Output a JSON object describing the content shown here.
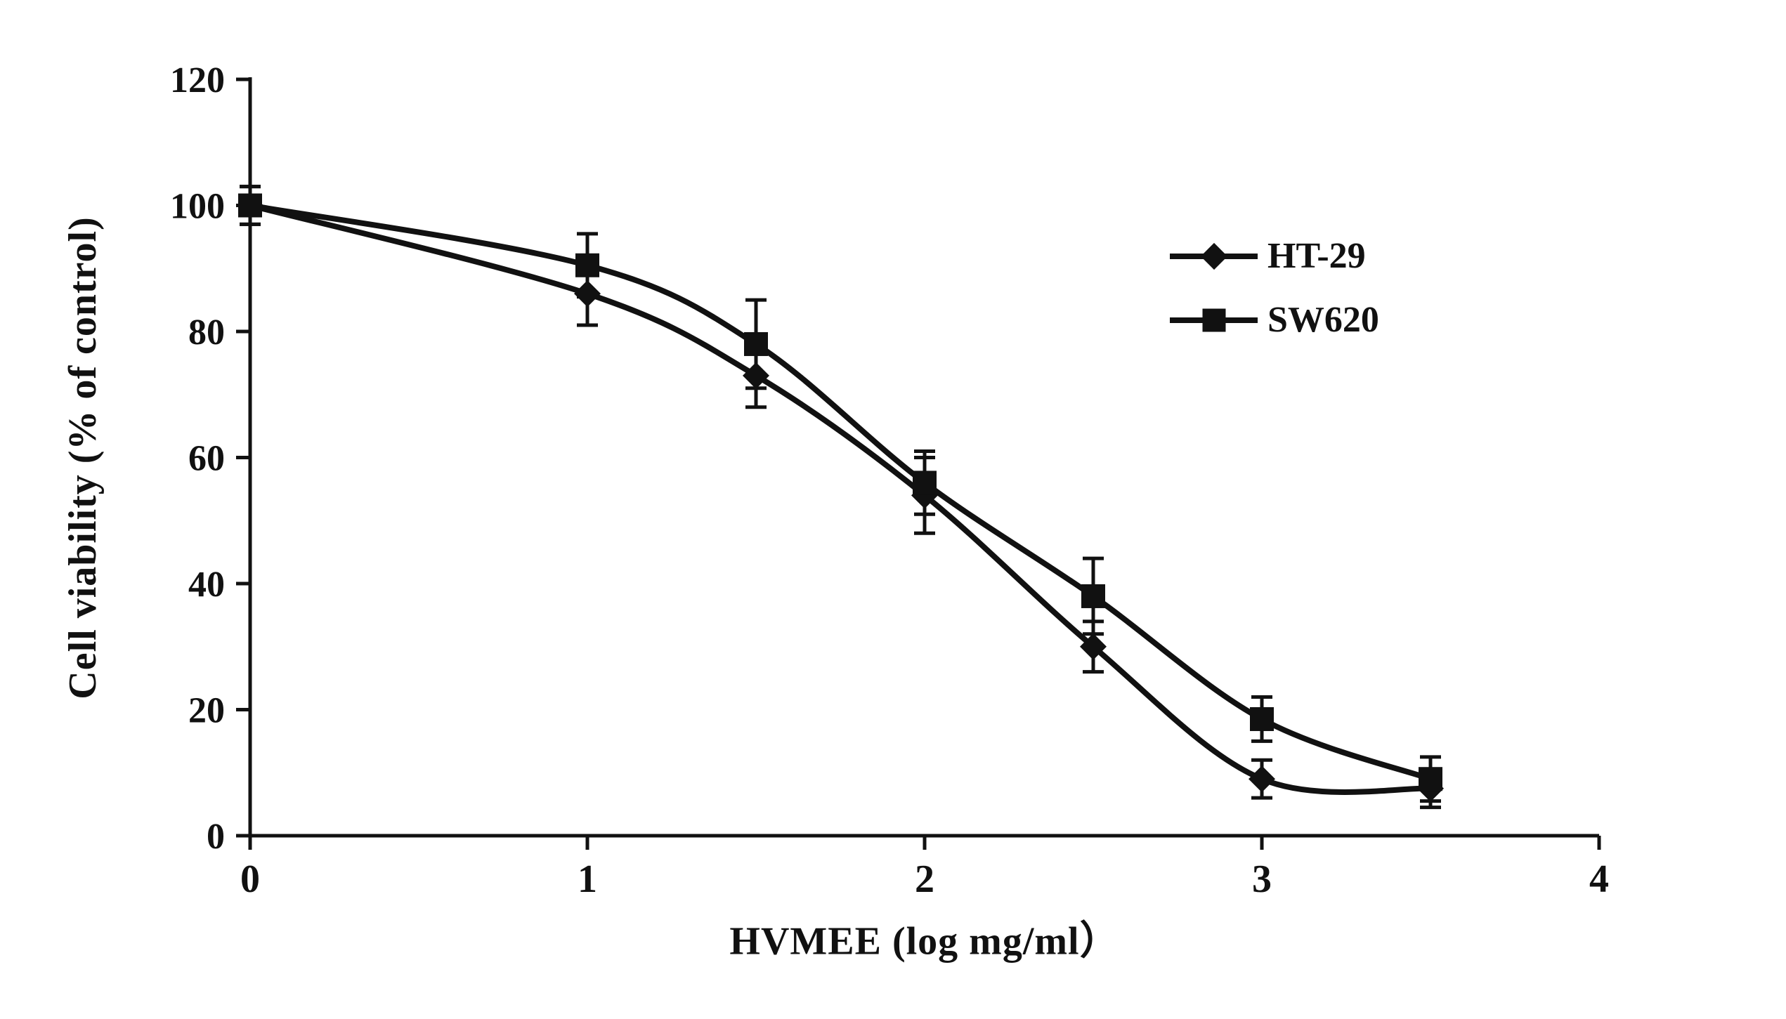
{
  "page": {
    "background": "#ffffff"
  },
  "chart_data": {
    "type": "line",
    "title": "",
    "xlabel": "HVMEE (log mg/ml）",
    "ylabel": "Cell viability (% of control)",
    "x": [
      0,
      1,
      1.5,
      2,
      2.5,
      3,
      3.5
    ],
    "xlim": [
      0,
      4
    ],
    "ylim": [
      0,
      120
    ],
    "xticks": [
      0,
      1,
      2,
      3,
      4
    ],
    "yticks": [
      0,
      20,
      40,
      60,
      80,
      100,
      120
    ],
    "grid": false,
    "line_color": "#111111",
    "legend_position": "inside-upper-right",
    "series": [
      {
        "name": "HT-29",
        "marker": "diamond",
        "values": [
          100,
          86,
          73,
          54,
          30,
          9,
          7.5
        ],
        "errors": [
          3,
          5,
          5,
          6,
          4,
          3,
          3
        ]
      },
      {
        "name": "SW620",
        "marker": "square",
        "values": [
          100,
          90.5,
          78,
          56,
          38,
          18.5,
          9
        ],
        "errors": [
          3,
          5,
          7,
          5,
          6,
          3.5,
          3.5
        ]
      }
    ]
  }
}
